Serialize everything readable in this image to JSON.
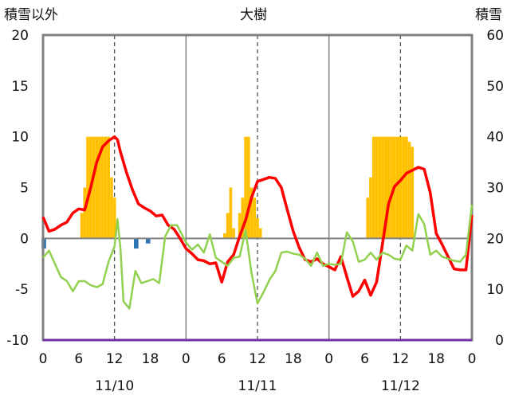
{
  "chart_data": {
    "type": "bar+line",
    "title": "大樹",
    "left_axis_title": "積雪以外",
    "right_axis_title": "積雪",
    "left_ylim": [
      -10,
      20
    ],
    "left_ticks": [
      "20",
      "15",
      "10",
      "5",
      "0",
      "-5",
      "-10"
    ],
    "right_ylim": [
      0,
      60
    ],
    "right_ticks": [
      "60",
      "50",
      "40",
      "30",
      "20",
      "10",
      "0"
    ],
    "x_ticks": [
      "0",
      "6",
      "12",
      "18",
      "0",
      "6",
      "12",
      "18",
      "0",
      "6",
      "12",
      "18",
      "0"
    ],
    "day_labels": [
      "11/10",
      "11/11",
      "11/12"
    ],
    "x_range_hours": [
      0,
      72
    ],
    "grid": "vertical dashed at 12h, solid day separators",
    "colors": {
      "snow_bars": "#FFC000",
      "precip_bars": "#2E75B6",
      "red_line": "#FF0000",
      "green_line": "#92D050",
      "baseline": "#7030A0",
      "axis": "#808080"
    },
    "series": [
      {
        "type": "bar",
        "axis": "right",
        "color": "#FFC000",
        "values": [
          [
            6.5,
            25
          ],
          [
            7,
            30
          ],
          [
            7.5,
            40
          ],
          [
            8,
            40
          ],
          [
            8.5,
            40
          ],
          [
            9,
            40
          ],
          [
            9.5,
            40
          ],
          [
            10,
            40
          ],
          [
            10.5,
            40
          ],
          [
            11,
            40
          ],
          [
            11.5,
            32
          ],
          [
            12,
            28
          ],
          [
            30.5,
            21
          ],
          [
            31,
            25
          ],
          [
            31.5,
            30
          ],
          [
            32,
            22
          ],
          [
            32.5,
            20
          ],
          [
            33,
            25
          ],
          [
            33.5,
            28
          ],
          [
            34,
            40
          ],
          [
            34.5,
            40
          ],
          [
            35,
            30
          ],
          [
            35.5,
            28
          ],
          [
            36,
            24
          ],
          [
            36.5,
            22
          ],
          [
            54.5,
            28
          ],
          [
            55,
            32
          ],
          [
            55.5,
            40
          ],
          [
            56,
            40
          ],
          [
            56.5,
            40
          ],
          [
            57,
            40
          ],
          [
            57.5,
            40
          ],
          [
            58,
            40
          ],
          [
            58.5,
            40
          ],
          [
            59,
            40
          ],
          [
            59.5,
            40
          ],
          [
            60,
            40
          ],
          [
            60.5,
            40
          ],
          [
            61,
            40
          ],
          [
            61.5,
            39
          ],
          [
            62,
            38
          ]
        ]
      },
      {
        "type": "bar",
        "axis": "left",
        "color": "#2E75B6",
        "values": [
          [
            0,
            -1
          ],
          [
            15.5,
            -1
          ],
          [
            17.5,
            -0.5
          ]
        ]
      },
      {
        "type": "line",
        "axis": "left",
        "color": "#FF0000",
        "values": [
          [
            0,
            2.1
          ],
          [
            1,
            0.7
          ],
          [
            2,
            0.9
          ],
          [
            3,
            1.3
          ],
          [
            4,
            1.6
          ],
          [
            5,
            2.5
          ],
          [
            6,
            2.9
          ],
          [
            7,
            2.8
          ],
          [
            8,
            5
          ],
          [
            9,
            7.5
          ],
          [
            10,
            9
          ],
          [
            11,
            9.6
          ],
          [
            12,
            10
          ],
          [
            12.5,
            9.7
          ],
          [
            13,
            8.5
          ],
          [
            14,
            6.5
          ],
          [
            15,
            4.8
          ],
          [
            16,
            3.4
          ],
          [
            17,
            3
          ],
          [
            18,
            2.7
          ],
          [
            19,
            2.2
          ],
          [
            20,
            2.3
          ],
          [
            21,
            1.3
          ],
          [
            22,
            0.9
          ],
          [
            23,
            0
          ],
          [
            24,
            -1
          ],
          [
            25,
            -1.5
          ],
          [
            26,
            -2.1
          ],
          [
            27,
            -2.2
          ],
          [
            28,
            -2.5
          ],
          [
            29,
            -2.4
          ],
          [
            30,
            -4.3
          ],
          [
            31,
            -2.3
          ],
          [
            32,
            -1.6
          ],
          [
            33,
            0.2
          ],
          [
            34,
            1.8
          ],
          [
            35,
            4
          ],
          [
            36,
            5.6
          ],
          [
            37,
            5.8
          ],
          [
            38,
            6
          ],
          [
            39,
            5.9
          ],
          [
            40,
            5
          ],
          [
            41,
            2.8
          ],
          [
            42,
            0.7
          ],
          [
            43,
            -0.9
          ],
          [
            44,
            -2.1
          ],
          [
            45,
            -2.3
          ],
          [
            46,
            -2
          ],
          [
            47,
            -2.5
          ],
          [
            48,
            -2.8
          ],
          [
            49,
            -3.1
          ],
          [
            50,
            -1.8
          ],
          [
            51,
            -3.8
          ],
          [
            52,
            -5.7
          ],
          [
            53,
            -5.2
          ],
          [
            54,
            -4.1
          ],
          [
            55,
            -5.6
          ],
          [
            56,
            -4.3
          ],
          [
            57,
            -0.5
          ],
          [
            58,
            3.4
          ],
          [
            59,
            5.1
          ],
          [
            60,
            5.7
          ],
          [
            61,
            6.4
          ],
          [
            62,
            6.7
          ],
          [
            63,
            7
          ],
          [
            64,
            6.8
          ],
          [
            65,
            4.5
          ],
          [
            66,
            0.5
          ],
          [
            67,
            -0.6
          ],
          [
            68,
            -1.8
          ],
          [
            69,
            -3
          ],
          [
            70,
            -3.1
          ],
          [
            71,
            -3.1
          ],
          [
            72,
            2.3
          ]
        ]
      },
      {
        "type": "line",
        "axis": "left",
        "color": "#92D050",
        "values": [
          [
            0,
            -1.9
          ],
          [
            1,
            -1.2
          ],
          [
            2,
            -2.5
          ],
          [
            3,
            -3.8
          ],
          [
            4,
            -4.2
          ],
          [
            5,
            -5.2
          ],
          [
            6,
            -4.2
          ],
          [
            7,
            -4.2
          ],
          [
            8,
            -4.6
          ],
          [
            9,
            -4.8
          ],
          [
            10,
            -4.5
          ],
          [
            11,
            -2.3
          ],
          [
            12,
            -0.8
          ],
          [
            12.5,
            1.9
          ],
          [
            13,
            -1
          ],
          [
            13.5,
            -6.2
          ],
          [
            14.5,
            -6.9
          ],
          [
            15.5,
            -3.2
          ],
          [
            16.5,
            -4.4
          ],
          [
            17.5,
            -4.2
          ],
          [
            18.5,
            -4
          ],
          [
            19.5,
            -4.4
          ],
          [
            20.5,
            0.2
          ],
          [
            21.5,
            1.3
          ],
          [
            22.5,
            1.3
          ],
          [
            24,
            -0.4
          ],
          [
            25,
            -1.1
          ],
          [
            26,
            -0.6
          ],
          [
            27,
            -1.4
          ],
          [
            28,
            0.4
          ],
          [
            29,
            -1.9
          ],
          [
            30,
            -2.3
          ],
          [
            31,
            -2.7
          ],
          [
            32,
            -1.9
          ],
          [
            33,
            -1.8
          ],
          [
            34,
            0.8
          ],
          [
            35,
            -3.4
          ],
          [
            36,
            -6.4
          ],
          [
            37,
            -5.3
          ],
          [
            38,
            -4.1
          ],
          [
            39,
            -3.2
          ],
          [
            40,
            -1.4
          ],
          [
            41,
            -1.3
          ],
          [
            42,
            -1.5
          ],
          [
            43,
            -1.6
          ],
          [
            44,
            -2
          ],
          [
            45,
            -2.7
          ],
          [
            46,
            -1.4
          ],
          [
            47,
            -2.7
          ],
          [
            48,
            -2.5
          ],
          [
            49,
            -2.6
          ],
          [
            50,
            -2.5
          ],
          [
            51,
            0.6
          ],
          [
            52,
            -0.3
          ],
          [
            53,
            -2.3
          ],
          [
            54,
            -2.1
          ],
          [
            55,
            -1.4
          ],
          [
            56,
            -2.1
          ],
          [
            57,
            -1.4
          ],
          [
            58,
            -1.6
          ],
          [
            59,
            -2
          ],
          [
            60,
            -2.1
          ],
          [
            61,
            -0.7
          ],
          [
            62,
            -1.2
          ],
          [
            63,
            2.4
          ],
          [
            64,
            1.4
          ],
          [
            65,
            -1.6
          ],
          [
            66,
            -1.2
          ],
          [
            67,
            -1.8
          ],
          [
            68,
            -2
          ],
          [
            69,
            -2.2
          ],
          [
            70,
            -2.3
          ],
          [
            71,
            -1.6
          ],
          [
            72,
            3.3
          ]
        ]
      },
      {
        "type": "line",
        "axis": "left",
        "color": "#7030A0",
        "values": [
          [
            0,
            -10
          ],
          [
            72,
            -10
          ]
        ]
      }
    ]
  }
}
